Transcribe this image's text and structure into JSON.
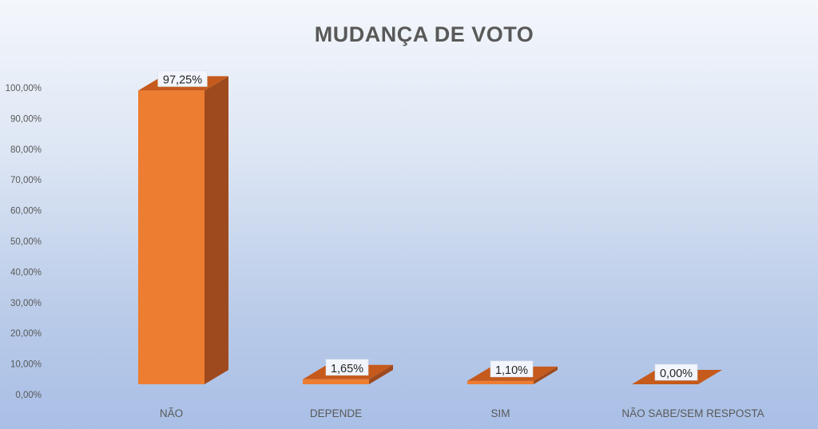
{
  "chart_data": {
    "type": "bar",
    "title": "MUDANÇA DE VOTO",
    "categories": [
      "NÃO",
      "DEPENDE",
      "SIM",
      "NÃO SABE/SEM RESPOSTA"
    ],
    "values": [
      97.25,
      1.65,
      1.1,
      0.0
    ],
    "data_labels": [
      "97,25%",
      "1,65%",
      "1,10%",
      "0,00%"
    ],
    "yticks": [
      "0,00%",
      "10,00%",
      "20,00%",
      "30,00%",
      "40,00%",
      "50,00%",
      "60,00%",
      "70,00%",
      "80,00%",
      "90,00%",
      "100,00%"
    ],
    "ylim": [
      0,
      100
    ],
    "xlabel": "",
    "ylabel": "",
    "grid": false,
    "legend": "none",
    "style": "3d-column",
    "colors": {
      "bar_front": "#ed7d31",
      "bar_side": "#9e4a1e",
      "bar_top": "#c55a1c",
      "label_box": "#f2f5fb"
    }
  }
}
